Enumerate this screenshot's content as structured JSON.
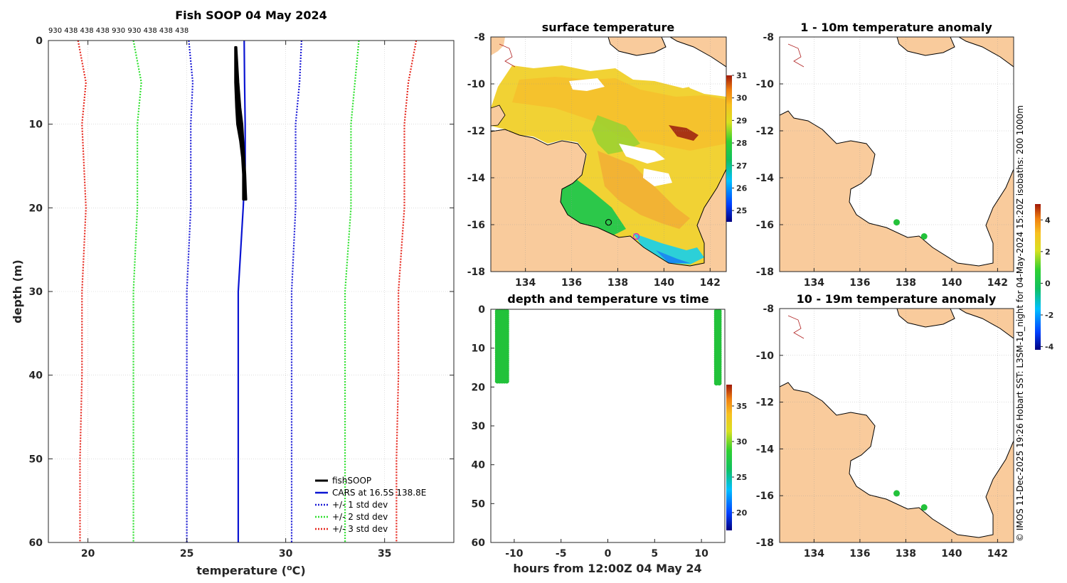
{
  "colors": {
    "land": "#f9cb9c",
    "fishsoop": "#000000",
    "cars": "#0a14d2",
    "std1": "#1a1ad6",
    "std2": "#2ee02e",
    "std3": "#e6281e",
    "dots": "#22c23a",
    "grid": "#c8c8c8"
  },
  "credit": "© IMOS 11-Dec-2025 19:26 Hobart SST: L3SM-1d_night for 04-May-2024 15:20Z  isobaths: 200  1000m",
  "charts": {
    "profile": {
      "type": "line",
      "title": "Fish SOOP 04 May 2024",
      "xlabel_main": "temperature (",
      "xlabel_sup": "o",
      "xlabel_end": "C)",
      "ylabel": "depth (m)",
      "xlim": [
        18,
        38.5
      ],
      "ylim": [
        0,
        60
      ],
      "xticks": [
        20,
        25,
        30,
        35
      ],
      "yticks": [
        0,
        10,
        20,
        30,
        40,
        50,
        60
      ],
      "top_annotation": [
        "930",
        "438",
        "438",
        "438",
        "930",
        "930",
        "438",
        "438",
        "438"
      ],
      "legend": [
        "fishSOOP",
        "CARS at 16.5S 138.8E",
        "+/- 1 std dev",
        "+/- 2 std dev",
        "+/- 3 std dev"
      ],
      "series": {
        "fishsoop_left": {
          "depth": [
            0.8,
            5,
            8,
            10,
            12,
            14,
            16,
            18,
            19
          ],
          "temp": [
            27.45,
            27.45,
            27.5,
            27.55,
            27.7,
            27.8,
            27.85,
            27.85,
            27.85
          ]
        },
        "fishsoop_right": {
          "depth": [
            0.8,
            5,
            8,
            10,
            12,
            14,
            16,
            18,
            19
          ],
          "temp": [
            27.5,
            27.6,
            27.7,
            27.8,
            27.85,
            27.9,
            27.95,
            27.98,
            28.0
          ]
        },
        "cars": {
          "depth": [
            0,
            5,
            10,
            15,
            20,
            30,
            40,
            50,
            60
          ],
          "temp": [
            27.9,
            27.92,
            27.95,
            27.95,
            27.85,
            27.6,
            27.6,
            27.6,
            27.6
          ]
        },
        "std1_lo": {
          "depth": [
            0,
            5,
            10,
            20,
            30,
            40,
            50,
            60
          ],
          "temp": [
            25.1,
            25.3,
            25.2,
            25.2,
            25.0,
            25.0,
            25.0,
            25.0
          ]
        },
        "std1_hi": {
          "depth": [
            0,
            5,
            10,
            20,
            30,
            40,
            50,
            60
          ],
          "temp": [
            30.8,
            30.7,
            30.5,
            30.5,
            30.3,
            30.3,
            30.3,
            30.3
          ]
        },
        "std2_lo": {
          "depth": [
            0,
            5,
            10,
            20,
            30,
            40,
            50,
            60
          ],
          "temp": [
            22.3,
            22.7,
            22.5,
            22.5,
            22.3,
            22.3,
            22.3,
            22.3
          ]
        },
        "std2_hi": {
          "depth": [
            0,
            5,
            10,
            20,
            30,
            40,
            50,
            60
          ],
          "temp": [
            33.7,
            33.5,
            33.3,
            33.3,
            33.0,
            33.0,
            33.0,
            33.0
          ]
        },
        "std3_lo": {
          "depth": [
            0,
            5,
            10,
            20,
            30,
            40,
            50,
            60
          ],
          "temp": [
            19.5,
            19.9,
            19.7,
            19.9,
            19.7,
            19.7,
            19.6,
            19.6
          ]
        },
        "std3_hi": {
          "depth": [
            0,
            5,
            10,
            20,
            30,
            40,
            50,
            60
          ],
          "temp": [
            36.6,
            36.2,
            36.0,
            36.0,
            35.7,
            35.7,
            35.6,
            35.6
          ]
        }
      }
    },
    "sst": {
      "type": "heatmap",
      "title": "surface temperature",
      "xlim": [
        132.5,
        142.7
      ],
      "ylim": [
        -18,
        -8
      ],
      "xticks": [
        134,
        136,
        138,
        140,
        142
      ],
      "yticks": [
        -8,
        -10,
        -12,
        -14,
        -16,
        -18
      ],
      "colorbar": {
        "range": [
          24.5,
          31
        ],
        "ticks": [
          25,
          26,
          27,
          28,
          29,
          30,
          31
        ]
      },
      "markers": [
        {
          "lon": 137.6,
          "lat": -15.9,
          "color": "#000000"
        },
        {
          "lon": 138.8,
          "lat": -16.5,
          "color": "#d020d0"
        }
      ]
    },
    "anom1": {
      "type": "scatter",
      "title": "1 - 10m temperature anomaly",
      "xlim": [
        132.5,
        142.7
      ],
      "ylim": [
        -18,
        -8
      ],
      "xticks": [
        134,
        136,
        138,
        140,
        142
      ],
      "yticks": [
        -8,
        -10,
        -12,
        -14,
        -16,
        -18
      ],
      "points": [
        {
          "lon": 137.6,
          "lat": -15.9
        },
        {
          "lon": 138.8,
          "lat": -16.5
        }
      ]
    },
    "anom2": {
      "type": "scatter",
      "title": "10 - 19m temperature anomaly",
      "xlim": [
        132.5,
        142.7
      ],
      "ylim": [
        -18,
        -8
      ],
      "xticks": [
        134,
        136,
        138,
        140,
        142
      ],
      "yticks": [
        -8,
        -10,
        -12,
        -14,
        -16,
        -18
      ],
      "points": [
        {
          "lon": 137.6,
          "lat": -15.9
        },
        {
          "lon": 138.8,
          "lat": -16.5
        }
      ]
    },
    "anom_colorbar": {
      "range": [
        -4.2,
        5
      ],
      "ticks": [
        -4,
        -2,
        0,
        2,
        4
      ]
    },
    "time": {
      "type": "scatter",
      "title": "depth and temperature vs time",
      "xlabel": "hours from 12:00Z 04 May 24",
      "xlim": [
        -12.5,
        12.5
      ],
      "ylim": [
        0,
        60
      ],
      "xticks": [
        -10,
        -5,
        0,
        5,
        10
      ],
      "yticks": [
        0,
        10,
        20,
        30,
        40,
        50,
        60
      ],
      "colorbar": {
        "range": [
          17.5,
          38
        ],
        "ticks": [
          20,
          25,
          30,
          35
        ]
      },
      "clusters": [
        {
          "x_min": -11.8,
          "x_max": -10.8,
          "depth_min": 0.5,
          "depth_max": 18.5,
          "columns": 5
        },
        {
          "x_min": 11.6,
          "x_max": 11.9,
          "depth_min": 0.5,
          "depth_max": 19,
          "columns": 2
        }
      ]
    }
  }
}
